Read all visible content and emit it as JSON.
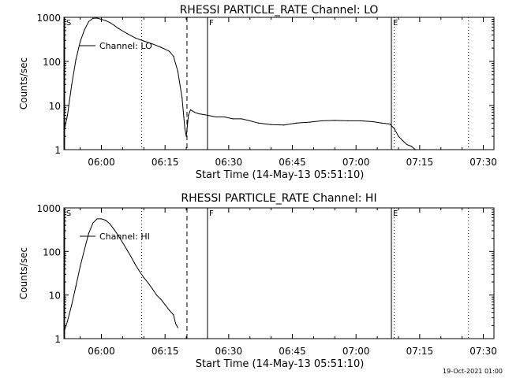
{
  "footer": {
    "timestamp": "19-Oct-2021 01:00"
  },
  "chart_data": [
    {
      "type": "line",
      "title": "RHESSI PARTICLE_RATE Channel: LO",
      "xlabel": "Start Time (14-May-13 05:51:10)",
      "ylabel": "Counts/sec",
      "yscale": "log",
      "ylim": [
        1,
        1000
      ],
      "xlim": [
        "05:51:10",
        "07:32:30"
      ],
      "x_ticks": [
        "06:00",
        "06:15",
        "06:30",
        "06:45",
        "07:00",
        "07:15",
        "07:30"
      ],
      "y_ticks": [
        "1",
        "10",
        "100",
        "1000"
      ],
      "legend": {
        "label": "Channel: LO",
        "placement": "top-left"
      },
      "markers": [
        {
          "label": "S",
          "time": "05:51:20",
          "style": "solid"
        },
        {
          "label": "",
          "time": "06:09:30",
          "style": "dotted"
        },
        {
          "label": "",
          "time": "06:20:10",
          "style": "dashed"
        },
        {
          "label": "F",
          "time": "06:25:00",
          "style": "solid"
        },
        {
          "label": "E",
          "time": "07:08:20",
          "style": "solid"
        },
        {
          "label": "",
          "time": "07:09:00",
          "style": "dotted"
        },
        {
          "label": "",
          "time": "07:26:30",
          "style": "dotted"
        }
      ],
      "series": [
        {
          "name": "Channel: LO",
          "points": [
            [
              "05:51:10",
              2.5
            ],
            [
              "05:52:00",
              6
            ],
            [
              "05:53:00",
              30
            ],
            [
              "05:54:00",
              110
            ],
            [
              "05:55:00",
              280
            ],
            [
              "05:56:00",
              520
            ],
            [
              "05:57:00",
              800
            ],
            [
              "05:58:00",
              950
            ],
            [
              "05:59:00",
              960
            ],
            [
              "06:00:00",
              900
            ],
            [
              "06:01:00",
              840
            ],
            [
              "06:02:00",
              760
            ],
            [
              "06:03:00",
              660
            ],
            [
              "06:04:00",
              560
            ],
            [
              "06:06:00",
              430
            ],
            [
              "06:08:00",
              340
            ],
            [
              "06:10:00",
              290
            ],
            [
              "06:12:00",
              250
            ],
            [
              "06:14:00",
              210
            ],
            [
              "06:16:00",
              170
            ],
            [
              "06:17:00",
              130
            ],
            [
              "06:18:00",
              60
            ],
            [
              "06:19:00",
              15
            ],
            [
              "06:19:40",
              3
            ],
            [
              "06:20:00",
              2
            ],
            [
              "06:20:30",
              6
            ],
            [
              "06:21:00",
              8
            ],
            [
              "06:22:00",
              7
            ],
            [
              "06:23:00",
              6.5
            ],
            [
              "06:25:00",
              6
            ],
            [
              "06:27:00",
              5.5
            ],
            [
              "06:29:00",
              5.5
            ],
            [
              "06:31:00",
              5
            ],
            [
              "06:33:00",
              5
            ],
            [
              "06:35:00",
              4.5
            ],
            [
              "06:37:00",
              4
            ],
            [
              "06:40:00",
              3.7
            ],
            [
              "06:43:00",
              3.6
            ],
            [
              "06:46:00",
              4
            ],
            [
              "06:49:00",
              4.2
            ],
            [
              "06:52:00",
              4.5
            ],
            [
              "06:55:00",
              4.6
            ],
            [
              "06:58:00",
              4.5
            ],
            [
              "07:01:00",
              4.5
            ],
            [
              "07:04:00",
              4.3
            ],
            [
              "07:06:00",
              4
            ],
            [
              "07:08:00",
              3.8
            ],
            [
              "07:09:00",
              3
            ],
            [
              "07:10:00",
              2
            ],
            [
              "07:11:00",
              1.6
            ],
            [
              "07:12:00",
              1.3
            ],
            [
              "07:13:00",
              1.2
            ],
            [
              "07:14:00",
              1
            ],
            [
              "07:16:00",
              1
            ],
            [
              "07:18:00",
              1
            ],
            [
              "07:20:00",
              1
            ],
            [
              "07:22:00",
              1
            ],
            [
              "07:24:00",
              1
            ],
            [
              "07:25:30",
              1
            ]
          ]
        }
      ]
    },
    {
      "type": "line",
      "title": "RHESSI PARTICLE_RATE Channel: HI",
      "xlabel": "Start Time (14-May-13 05:51:10)",
      "ylabel": "Counts/sec",
      "yscale": "log",
      "ylim": [
        1,
        1000
      ],
      "xlim": [
        "05:51:10",
        "07:32:30"
      ],
      "x_ticks": [
        "06:00",
        "06:15",
        "06:30",
        "06:45",
        "07:00",
        "07:15",
        "07:30"
      ],
      "y_ticks": [
        "1",
        "10",
        "100",
        "1000"
      ],
      "legend": {
        "label": "Channel: HI",
        "placement": "top-left"
      },
      "markers": [
        {
          "label": "S",
          "time": "05:51:20",
          "style": "solid"
        },
        {
          "label": "",
          "time": "06:09:30",
          "style": "dotted"
        },
        {
          "label": "",
          "time": "06:20:10",
          "style": "dashed"
        },
        {
          "label": "F",
          "time": "06:25:00",
          "style": "solid"
        },
        {
          "label": "E",
          "time": "07:08:20",
          "style": "solid"
        },
        {
          "label": "",
          "time": "07:09:00",
          "style": "dotted"
        },
        {
          "label": "",
          "time": "07:26:30",
          "style": "dotted"
        }
      ],
      "series": [
        {
          "name": "Channel: HI",
          "points": [
            [
              "05:51:10",
              1.4
            ],
            [
              "05:52:00",
              2.5
            ],
            [
              "05:53:00",
              6
            ],
            [
              "05:54:00",
              16
            ],
            [
              "05:55:00",
              45
            ],
            [
              "05:56:00",
              110
            ],
            [
              "05:57:00",
              260
            ],
            [
              "05:58:00",
              450
            ],
            [
              "05:59:00",
              560
            ],
            [
              "06:00:00",
              560
            ],
            [
              "06:01:00",
              520
            ],
            [
              "06:02:00",
              430
            ],
            [
              "06:03:00",
              320
            ],
            [
              "06:04:00",
              230
            ],
            [
              "06:05:00",
              160
            ],
            [
              "06:06:00",
              110
            ],
            [
              "06:07:00",
              75
            ],
            [
              "06:08:00",
              50
            ],
            [
              "06:09:00",
              35
            ],
            [
              "06:10:00",
              25
            ],
            [
              "06:11:00",
              19
            ],
            [
              "06:12:00",
              14
            ],
            [
              "06:13:00",
              10
            ],
            [
              "06:14:00",
              8
            ],
            [
              "06:15:00",
              6
            ],
            [
              "06:16:00",
              4.5
            ],
            [
              "06:17:00",
              3.5
            ],
            [
              "06:17:30",
              2.2
            ],
            [
              "06:18:00",
              1.8
            ]
          ]
        }
      ]
    }
  ]
}
